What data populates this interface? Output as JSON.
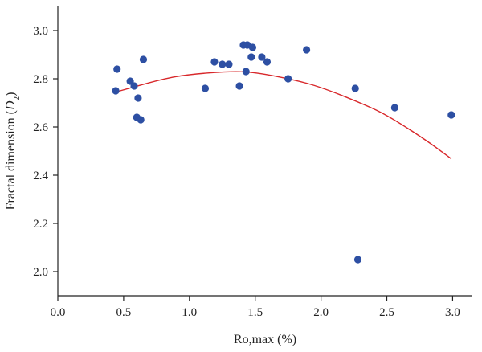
{
  "chart_data": {
    "type": "scatter",
    "xlabel": "Ro,max (%)",
    "ylabel_text": "Fractal dimension (",
    "ylabel_symbol": "D",
    "ylabel_sub": "2",
    "ylabel_close": ")",
    "xlim": [
      0.0,
      3.15
    ],
    "ylim": [
      1.9,
      3.1
    ],
    "x_ticks": [
      "0.0",
      "0.5",
      "1.0",
      "1.5",
      "2.0",
      "2.5",
      "3.0"
    ],
    "y_ticks": [
      "2.0",
      "2.2",
      "2.4",
      "2.6",
      "2.8",
      "3.0"
    ],
    "grid": false,
    "points": [
      {
        "x": 0.44,
        "y": 2.75
      },
      {
        "x": 0.45,
        "y": 2.84
      },
      {
        "x": 0.55,
        "y": 2.79
      },
      {
        "x": 0.58,
        "y": 2.77
      },
      {
        "x": 0.6,
        "y": 2.64
      },
      {
        "x": 0.61,
        "y": 2.72
      },
      {
        "x": 0.63,
        "y": 2.63
      },
      {
        "x": 0.65,
        "y": 2.88
      },
      {
        "x": 1.12,
        "y": 2.76
      },
      {
        "x": 1.19,
        "y": 2.87
      },
      {
        "x": 1.25,
        "y": 2.86
      },
      {
        "x": 1.3,
        "y": 2.86
      },
      {
        "x": 1.38,
        "y": 2.77
      },
      {
        "x": 1.41,
        "y": 2.94
      },
      {
        "x": 1.43,
        "y": 2.83
      },
      {
        "x": 1.44,
        "y": 2.94
      },
      {
        "x": 1.47,
        "y": 2.89
      },
      {
        "x": 1.48,
        "y": 2.93
      },
      {
        "x": 1.55,
        "y": 2.89
      },
      {
        "x": 1.59,
        "y": 2.87
      },
      {
        "x": 1.75,
        "y": 2.8
      },
      {
        "x": 1.89,
        "y": 2.92
      },
      {
        "x": 2.26,
        "y": 2.76
      },
      {
        "x": 2.28,
        "y": 2.05
      },
      {
        "x": 2.56,
        "y": 2.68
      },
      {
        "x": 2.99,
        "y": 2.65
      }
    ],
    "fit_curve": {
      "type": "quadratic",
      "x_range": [
        0.44,
        2.99
      ],
      "y_values": [
        {
          "x": 0.44,
          "y": 2.745
        },
        {
          "x": 0.8,
          "y": 2.8
        },
        {
          "x": 1.0,
          "y": 2.818
        },
        {
          "x": 1.3,
          "y": 2.831
        },
        {
          "x": 1.5,
          "y": 2.827
        },
        {
          "x": 1.8,
          "y": 2.795
        },
        {
          "x": 2.0,
          "y": 2.765
        },
        {
          "x": 2.3,
          "y": 2.7
        },
        {
          "x": 2.5,
          "y": 2.65
        },
        {
          "x": 2.8,
          "y": 2.545
        },
        {
          "x": 2.99,
          "y": 2.468
        }
      ]
    },
    "colors": {
      "points": "#2d4fa3",
      "fit_line": "#d8282b",
      "axis": "#222222"
    }
  }
}
